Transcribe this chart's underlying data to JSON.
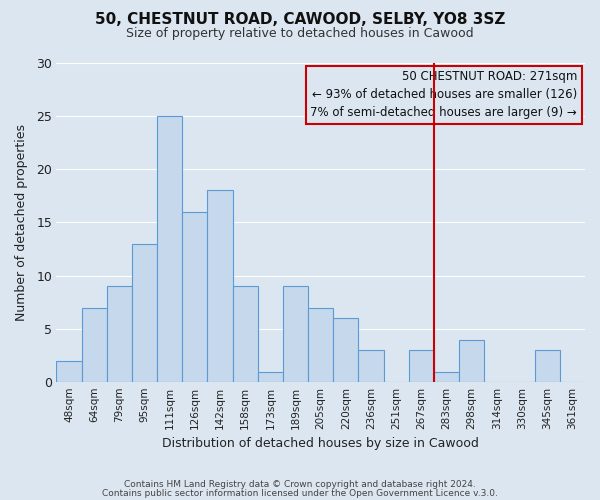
{
  "title": "50, CHESTNUT ROAD, CAWOOD, SELBY, YO8 3SZ",
  "subtitle": "Size of property relative to detached houses in Cawood",
  "xlabel": "Distribution of detached houses by size in Cawood",
  "ylabel": "Number of detached properties",
  "bar_labels": [
    "48sqm",
    "64sqm",
    "79sqm",
    "95sqm",
    "111sqm",
    "126sqm",
    "142sqm",
    "158sqm",
    "173sqm",
    "189sqm",
    "205sqm",
    "220sqm",
    "236sqm",
    "251sqm",
    "267sqm",
    "283sqm",
    "298sqm",
    "314sqm",
    "330sqm",
    "345sqm",
    "361sqm"
  ],
  "bar_values": [
    2,
    7,
    9,
    13,
    25,
    16,
    18,
    9,
    1,
    9,
    7,
    6,
    3,
    0,
    3,
    1,
    4,
    0,
    0,
    3,
    0
  ],
  "bar_color": "#c5d8ec",
  "bar_edgecolor": "#5b9bd5",
  "ylim": [
    0,
    30
  ],
  "yticks": [
    0,
    5,
    10,
    15,
    20,
    25,
    30
  ],
  "vline_x": 14.5,
  "vline_color": "#cc0000",
  "annotation_title": "50 CHESTNUT ROAD: 271sqm",
  "annotation_line1": "← 93% of detached houses are smaller (126)",
  "annotation_line2": "7% of semi-detached houses are larger (9) →",
  "annotation_box_color": "#cc0000",
  "bg_color": "#dce6f0",
  "footer1": "Contains HM Land Registry data © Crown copyright and database right 2024.",
  "footer2": "Contains public sector information licensed under the Open Government Licence v.3.0."
}
